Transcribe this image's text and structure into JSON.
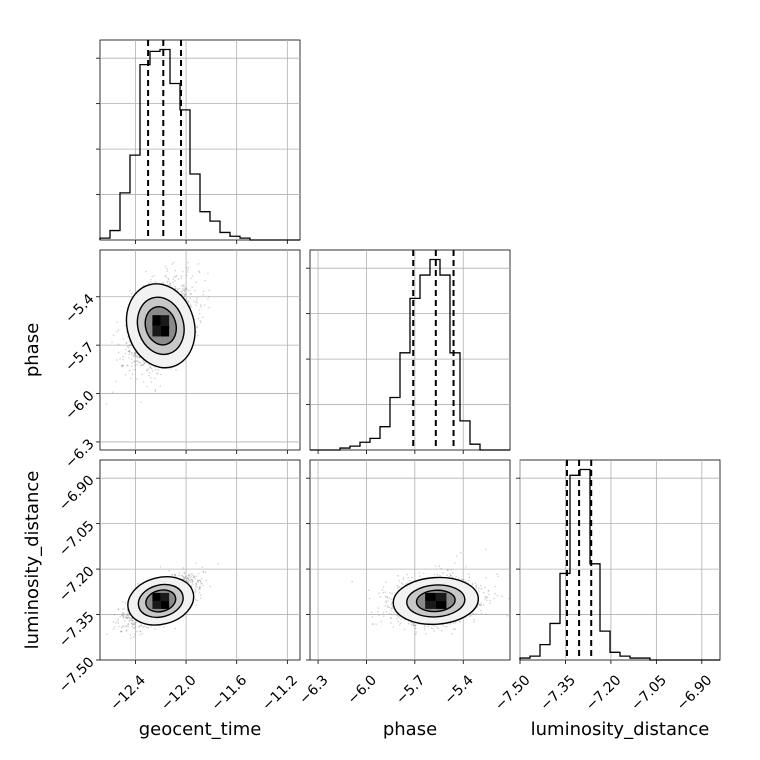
{
  "chart_data": {
    "type": "corner",
    "parameters": [
      "geocent_time",
      "phase",
      "luminosity_distance"
    ],
    "ranges": {
      "geocent_time": [
        -12.68,
        -11.1
      ],
      "phase": [
        -6.35,
        -5.11
      ],
      "luminosity_distance": [
        -7.5,
        -6.84
      ]
    },
    "ticks": {
      "geocent_time": [
        -12.4,
        -12.0,
        -11.6,
        -11.2
      ],
      "phase": [
        -6.3,
        -6.0,
        -5.7,
        -5.4
      ],
      "luminosity_distance": [
        -7.5,
        -7.35,
        -7.2,
        -7.05,
        -6.9
      ]
    },
    "tick_labels": {
      "geocent_time": [
        "−12.4",
        "−12.0",
        "−11.6",
        "−11.2"
      ],
      "phase": [
        "−6.3",
        "−6.0",
        "−5.7",
        "−5.4"
      ],
      "luminosity_distance": [
        "−7.50",
        "−7.35",
        "−7.20",
        "−7.05",
        "−6.90"
      ]
    },
    "y_tick_labels": {
      "phase": [
        "−6.3",
        "−6.0",
        "−5.7",
        "−5.4"
      ],
      "luminosity_distance": [
        "−7.50",
        "−7.35",
        "−7.20",
        "−7.05",
        "−6.90"
      ]
    },
    "axis_labels": {
      "x": [
        "geocent_time",
        "phase",
        "luminosity_distance"
      ],
      "y": [
        "phase",
        "luminosity_distance"
      ]
    },
    "quantiles": {
      "geocent_time": [
        -12.3,
        -12.18,
        -12.04
      ],
      "phase": [
        -5.71,
        -5.57,
        -5.46
      ],
      "luminosity_distance": [
        -7.345,
        -7.305,
        -7.265
      ]
    },
    "histograms": {
      "geocent_time": {
        "edges_start": -12.68,
        "bin_width": 0.079,
        "counts": [
          1,
          5,
          25,
          45,
          93,
          100,
          101,
          83,
          69,
          35,
          15,
          10,
          4,
          2,
          1,
          0,
          0,
          0,
          0,
          0
        ]
      },
      "phase": {
        "edges_start": -6.35,
        "bin_width": 0.062,
        "counts": [
          0,
          0,
          0,
          1,
          2,
          4,
          6,
          12,
          27,
          50,
          78,
          90,
          98,
          90,
          50,
          15,
          3,
          0,
          0,
          0
        ]
      },
      "luminosity_distance": {
        "edges_start": -7.5,
        "bin_width": 0.033,
        "counts": [
          1,
          2,
          8,
          19,
          45,
          96,
          99,
          50,
          15,
          4,
          2,
          1,
          1,
          0,
          0,
          0,
          0,
          0,
          0,
          0
        ]
      }
    },
    "posterior_2d": {
      "geocent_time_phase": {
        "mean": [
          -12.2,
          -5.58
        ],
        "std": [
          0.12,
          0.12
        ],
        "corr": 0.4
      },
      "geocent_time_luminosity_distance": {
        "mean": [
          -12.2,
          -7.305
        ],
        "std": [
          0.12,
          0.035
        ],
        "corr": 0.65
      },
      "phase_luminosity_distance": {
        "mean": [
          -5.57,
          -7.305
        ],
        "std": [
          0.12,
          0.035
        ],
        "corr": 0.2
      }
    },
    "grid": true,
    "colors": {
      "line": "#000000",
      "grid": "#b0b0b0",
      "scatter": "#7f7f7f",
      "background": "#ffffff"
    }
  }
}
